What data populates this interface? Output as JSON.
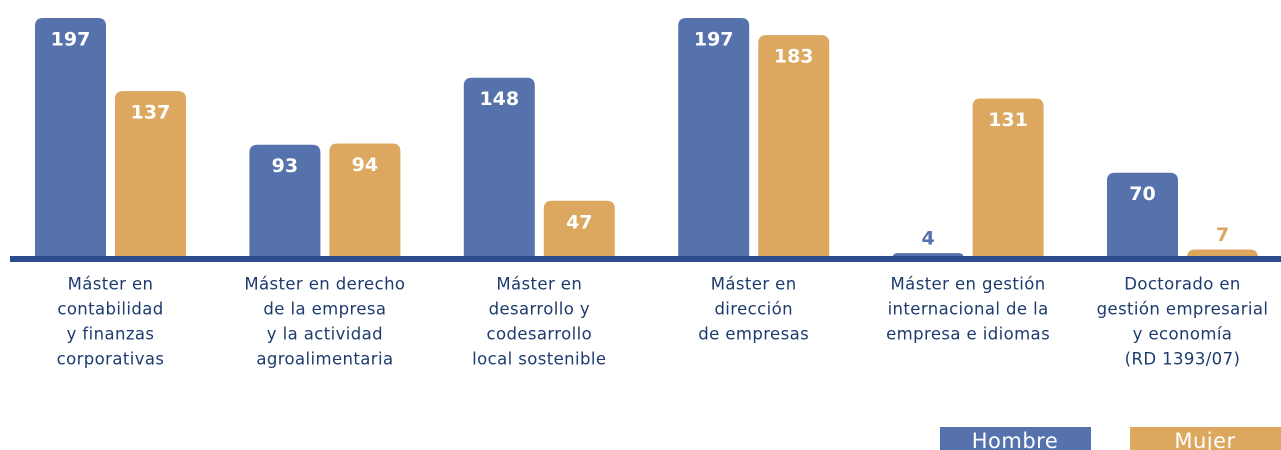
{
  "chart_data": {
    "type": "bar",
    "categories": [
      [
        "Máster en",
        "contabilidad",
        "y finanzas",
        "corporativas"
      ],
      [
        "Máster en derecho",
        "de la empresa",
        "y la actividad",
        "agroalimentaria"
      ],
      [
        "Máster en",
        "desarrollo y",
        "codesarrollo",
        "local sostenible"
      ],
      [
        "Máster en",
        "dirección",
        "de empresas"
      ],
      [
        "Máster en gestión",
        "internacional de la",
        "empresa e idiomas"
      ],
      [
        "Doctorado en",
        "gestión empresarial",
        "y economía",
        "(RD 1393/07)"
      ]
    ],
    "series": [
      {
        "name": "Hombre",
        "color": "#5572ad",
        "values": [
          197,
          93,
          148,
          197,
          4,
          70
        ]
      },
      {
        "name": "Mujer",
        "color": "#dca85f",
        "values": [
          137,
          94,
          47,
          183,
          131,
          7
        ]
      }
    ]
  }
}
